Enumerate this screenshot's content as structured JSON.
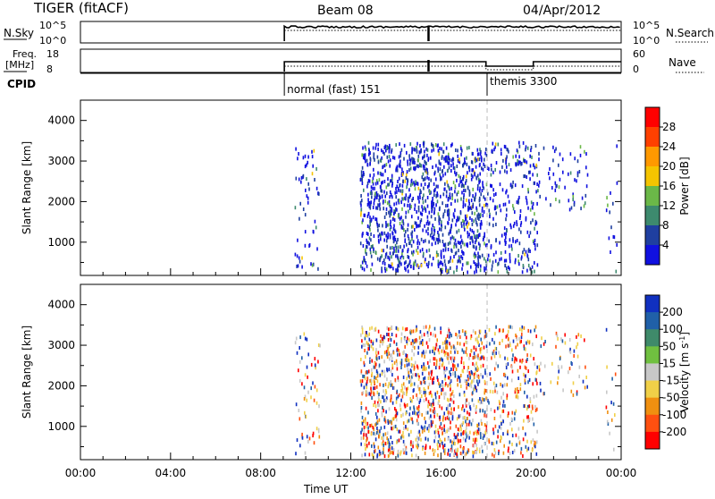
{
  "header": {
    "title": "TIGER (fitACF)",
    "beam": "Beam 08",
    "date": "04/Apr/2012"
  },
  "top_panels": {
    "nsky": {
      "label": "N.Sky",
      "ticks": [
        "10^5",
        "10^0"
      ],
      "right_ticks": [
        "10^5",
        "10^0"
      ],
      "right_label": "N.Search"
    },
    "freq": {
      "label": "Freq.",
      "unit": "[MHz]",
      "ticks": [
        "18",
        "8"
      ],
      "right_ticks": [
        "60",
        "0"
      ],
      "right_label": "Nave"
    },
    "cpid": {
      "label": "CPID",
      "modes": [
        {
          "name": "normal (fast) 151",
          "start_hour": 9.05
        },
        {
          "name": "themis 3300",
          "start_hour": 18.05
        }
      ]
    }
  },
  "x_axis": {
    "label": "Time UT",
    "ticks": [
      "00:00",
      "04:00",
      "08:00",
      "12:00",
      "16:00",
      "20:00",
      "00:00"
    ],
    "range_hours": [
      0,
      24
    ]
  },
  "chart_data": [
    {
      "type": "heatmap",
      "name": "power",
      "ylabel": "Slant Range [km]",
      "yticks": [
        "4000",
        "3000",
        "2000",
        "1000"
      ],
      "ylim": [
        180,
        4500
      ],
      "colorbar": {
        "label": "Power [dB]",
        "ticks": [
          "28",
          "24",
          "20",
          "16",
          "12",
          "8",
          "4"
        ],
        "colors": [
          "#ff0000",
          "#ff4000",
          "#ff9900",
          "#f5c400",
          "#6bb848",
          "#3d8a6e",
          "#1f3fa0",
          "#1010e0"
        ]
      }
    },
    {
      "type": "heatmap",
      "name": "velocity",
      "ylabel": "Slant Range [km]",
      "yticks": [
        "4000",
        "3000",
        "2000",
        "1000"
      ],
      "ylim": [
        180,
        4500
      ],
      "colorbar": {
        "label": "Velocity [m s",
        "label_sup": "-1",
        "label_end": "]",
        "ticks": [
          "200",
          "100",
          "50",
          "15",
          "-15",
          "-50",
          "-100",
          "-200"
        ],
        "colors": [
          "#1030c0",
          "#2060a8",
          "#3f8a6a",
          "#70c040",
          "#c8c8c8",
          "#f0d048",
          "#f09010",
          "#ff5010",
          "#ff0000"
        ]
      }
    }
  ]
}
